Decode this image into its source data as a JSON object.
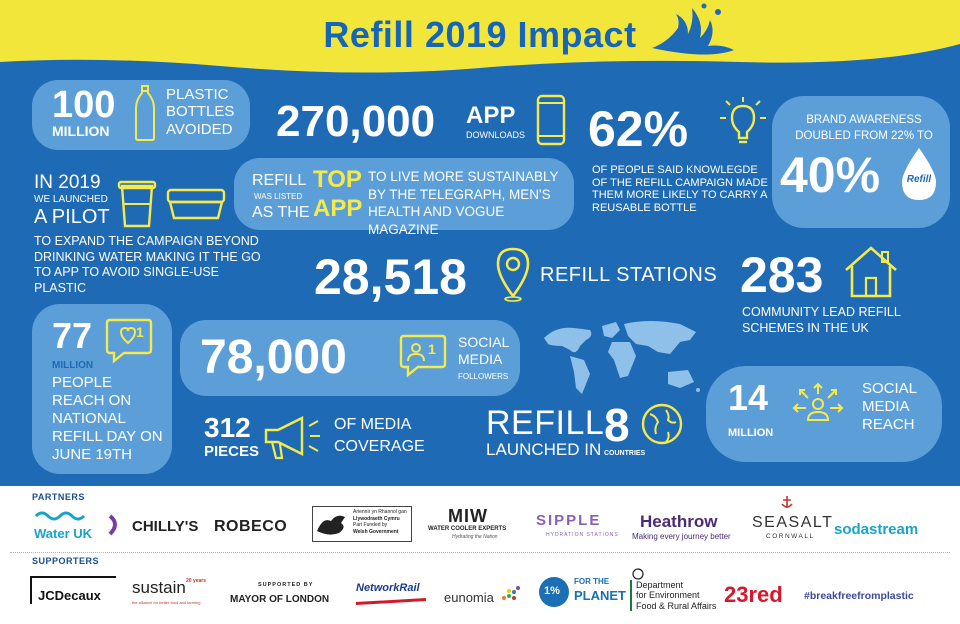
{
  "title": "Refill 2019 Impact",
  "colors": {
    "bg_blue": "#1f6ab5",
    "light_blue": "#5c9fd8",
    "yellow": "#f6e94a",
    "banner_yellow": "#f3e63a",
    "title_blue": "#1565b8"
  },
  "stats": {
    "bottles": {
      "number": "100",
      "unit": "MILLION",
      "text": "PLASTIC BOTTLES AVOIDED",
      "icon": "bottle-icon"
    },
    "app": {
      "number": "270,000",
      "word": "APP",
      "sub": "DOWNLOADS",
      "icon": "phone-icon"
    },
    "top_app": {
      "prefix": "REFILL",
      "was_listed": "WAS LISTED",
      "as_the": "AS THE",
      "top": "TOP",
      "app": "APP",
      "text": "TO LIVE MORE SUSTAINABLY BY THE TELEGRAPH, MEN'S HEALTH AND VOGUE MAGAZINE"
    },
    "percent62": {
      "number": "62%",
      "text": "OF PEOPLE SAID KNOWLEGDE OF THE REFILL CAMPAIGN MADE THEM MORE LIKELY TO CARRY A REUSABLE BOTTLE",
      "icon": "lightbulb-icon"
    },
    "brand": {
      "text": "BRAND AWARENESS DOUBLED FROM 22% TO",
      "number": "40%",
      "icon": "water-drop-icon",
      "drop_text": "Refill"
    },
    "pilot": {
      "line1": "IN 2019",
      "line2": "WE LAUNCHED",
      "line3": "A PILOT",
      "text": "TO EXPAND THE CAMPAIGN BEYOND DRINKING WATER MAKING IT THE GO TO APP TO AVOID SINGLE-USE PLASTIC",
      "icon": "cup-and-box-icon"
    },
    "stations": {
      "number": "28,518",
      "text": "REFILL STATIONS",
      "icon": "map-pin-icon"
    },
    "community": {
      "number": "283",
      "text": "COMMUNITY LEAD REFILL SCHEMES IN THE UK",
      "icon": "house-icon"
    },
    "reach77": {
      "number": "77",
      "unit": "MILLION",
      "text": "PEOPLE REACH ON NATIONAL REFILL DAY ON JUNE 19TH",
      "icon": "like-icon",
      "badge": "1"
    },
    "social": {
      "number": "78,000",
      "text": "SOCIAL MEDIA",
      "sub": "FOLLOWERS",
      "icon": "followers-icon",
      "badge": "1"
    },
    "media": {
      "number": "312",
      "unit": "PIECES",
      "text": "OF MEDIA COVERAGE",
      "icon": "megaphone-icon"
    },
    "countries": {
      "refill": "REFILL",
      "launched": "LAUNCHED IN",
      "number": "8",
      "unit": "COUNTRIES",
      "icon": "globe-icon"
    },
    "world": {
      "icon": "world-map-icon"
    },
    "social_reach": {
      "number": "14",
      "unit": "MILLION",
      "text": "SOCIAL MEDIA REACH",
      "icon": "network-icon"
    }
  },
  "partners": {
    "label": "PARTNERS",
    "logos": [
      {
        "name": "Water UK",
        "color": "#1aa3c9"
      },
      {
        "name": "CHILLY'S",
        "color": "#222222"
      },
      {
        "name": "ROBECO",
        "color": "#222222"
      },
      {
        "name": "Llywodraeth Cymru Welsh Government",
        "line1": "Ariennir yn Rhannol gan",
        "line2": "Llywodraeth Cymru",
        "line3": "Part Funded by",
        "line4": "Welsh Government",
        "color": "#222222"
      },
      {
        "name": "MIW",
        "sub": "WATER COOLER EXPERTS",
        "tag": "Hydrating the Nation",
        "color": "#222222"
      },
      {
        "name": "SIPPLE",
        "sub": "HYDRATION STATIONS",
        "color": "#8a5fb8"
      },
      {
        "name": "Heathrow",
        "sub": "Making every journey better",
        "color": "#4b2a7a"
      },
      {
        "name": "SEASALT",
        "sub": "CORNWALL",
        "color": "#333333"
      },
      {
        "name": "sodastream",
        "color": "#1aa3c9"
      }
    ]
  },
  "supporters": {
    "label": "SUPPORTERS",
    "logos": [
      {
        "name": "JCDecaux",
        "color": "#111111"
      },
      {
        "name": "sustain",
        "sub": "the alliance for better food and farming",
        "badge": "20 years",
        "color": "#222222"
      },
      {
        "name": "MAYOR OF LONDON",
        "pre": "SUPPORTED BY",
        "color": "#222222"
      },
      {
        "name": "NetworkRail",
        "color": "#1b3b8f"
      },
      {
        "name": "eunomia",
        "color": "#333333"
      },
      {
        "name": "1% FOR THE PLANET",
        "num": "1%",
        "line1": "FOR THE",
        "line2": "PLANET",
        "color": "#1a6fb5"
      },
      {
        "name": "Department for Environment Food & Rural Affairs",
        "line1": "Department",
        "line2": "for Environment",
        "line3": "Food & Rural Affairs",
        "color": "#222222"
      },
      {
        "name": "23red",
        "color": "#d6182c"
      },
      {
        "name": "#breakfreefromplastic",
        "color": "#3d4a9c"
      }
    ]
  }
}
